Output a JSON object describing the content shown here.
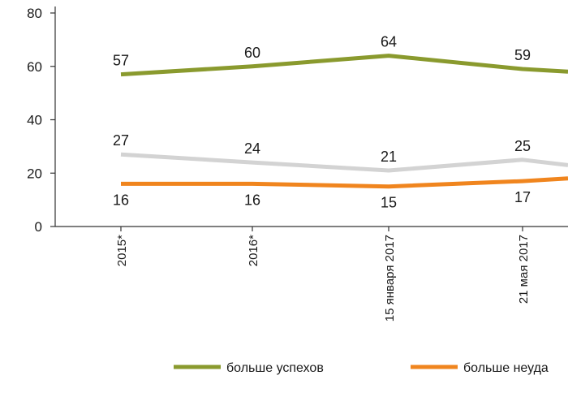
{
  "chart_data": {
    "type": "line",
    "categories": [
      "2015*",
      "2016*",
      "15 января 2017",
      "21 мая 2017",
      ""
    ],
    "series": [
      {
        "name": "больше успехов",
        "values": [
          57,
          60,
          64,
          59,
          58
        ],
        "color": "#8a9a2e",
        "labels": [
          "57",
          "60",
          "64",
          "59",
          ""
        ]
      },
      {
        "name": "",
        "values": [
          27,
          24,
          21,
          25,
          23
        ],
        "color": "#d3d3d3",
        "labels": [
          "27",
          "24",
          "21",
          "25",
          ""
        ]
      },
      {
        "name": "больше неуда",
        "values": [
          16,
          16,
          15,
          17,
          18
        ],
        "color": "#f0851e",
        "labels": [
          "16",
          "16",
          "15",
          "17",
          ""
        ]
      }
    ],
    "yticks": [
      0,
      20,
      40,
      60,
      80
    ],
    "ylim": [
      0,
      80
    ],
    "title": "",
    "xlabel": "",
    "ylabel": "",
    "legend_position": "bottom",
    "grid": false
  }
}
